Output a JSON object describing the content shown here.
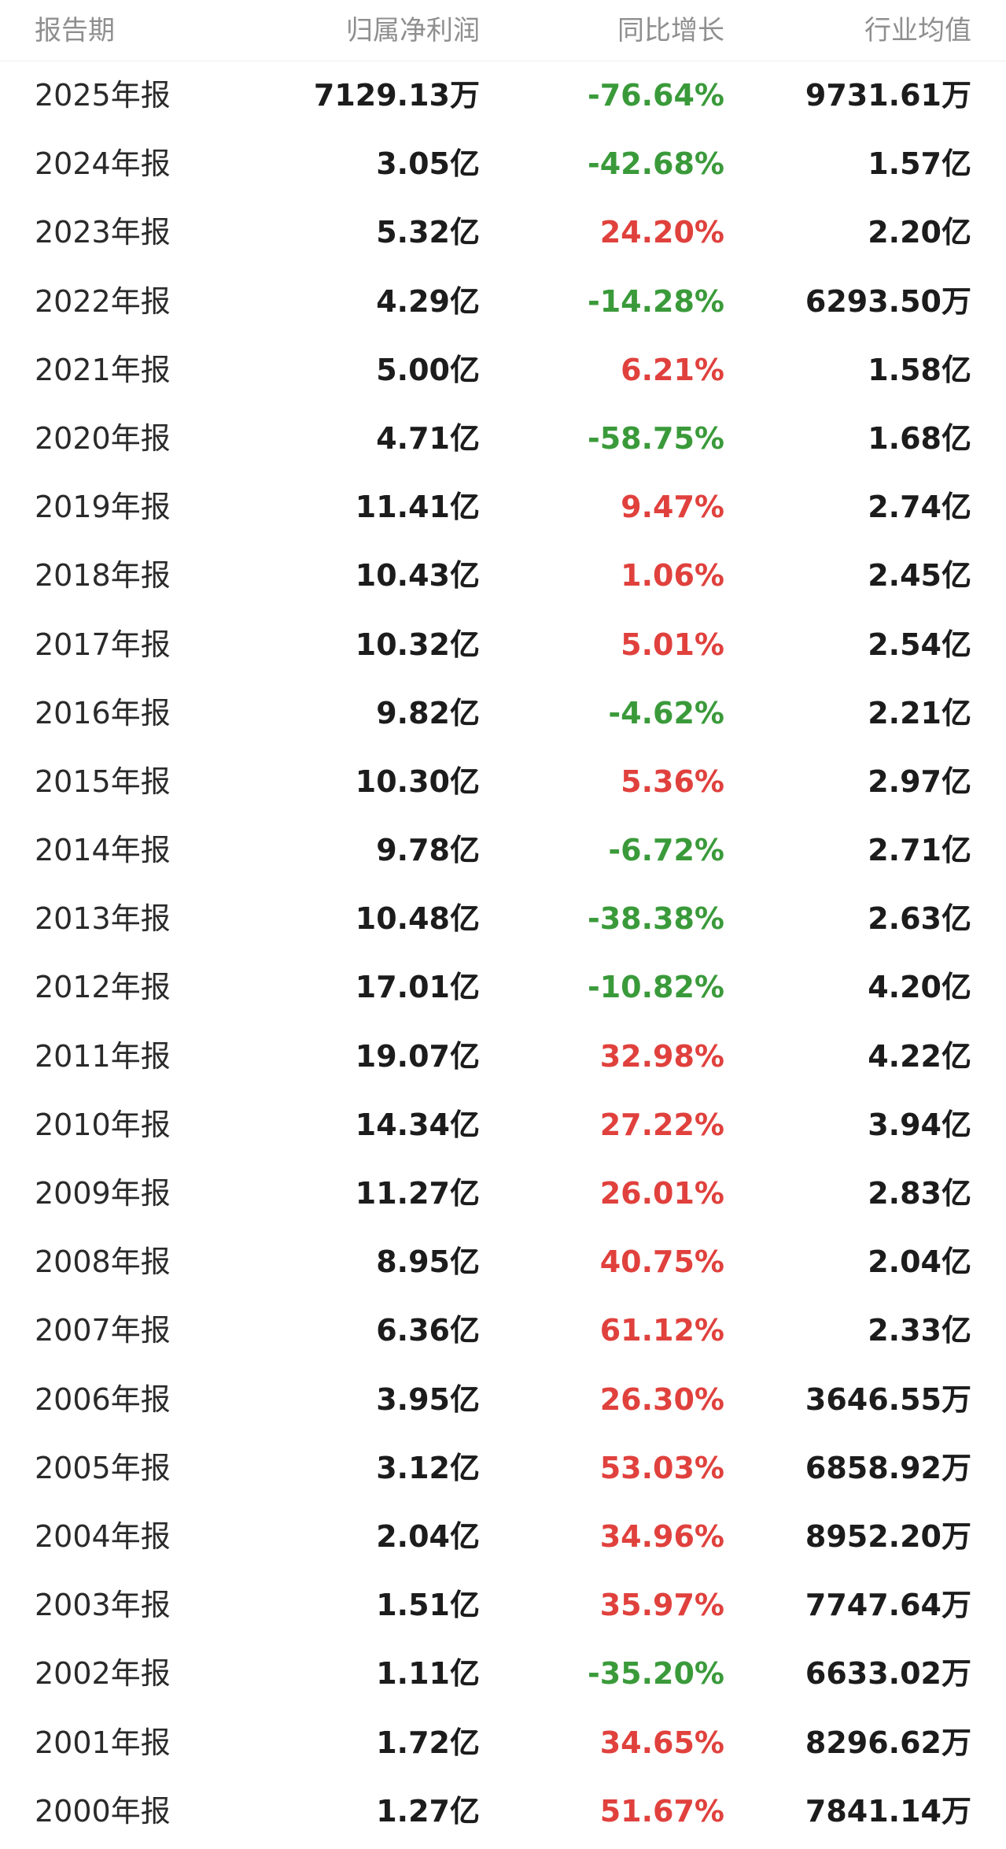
{
  "header": {
    "period": "报告期",
    "profit": "归属净利润",
    "growth": "同比增长",
    "industry_avg": "行业均值"
  },
  "colors": {
    "up": "#e0413d",
    "down": "#3a9a3a",
    "header_text": "#8f8f8f"
  },
  "rows": [
    {
      "period": "2025年报",
      "profit": "7129.13万",
      "growth": "-76.64%",
      "avg": "9731.61万",
      "dir": "down"
    },
    {
      "period": "2024年报",
      "profit": "3.05亿",
      "growth": "-42.68%",
      "avg": "1.57亿",
      "dir": "down"
    },
    {
      "period": "2023年报",
      "profit": "5.32亿",
      "growth": "24.20%",
      "avg": "2.20亿",
      "dir": "up"
    },
    {
      "period": "2022年报",
      "profit": "4.29亿",
      "growth": "-14.28%",
      "avg": "6293.50万",
      "dir": "down"
    },
    {
      "period": "2021年报",
      "profit": "5.00亿",
      "growth": "6.21%",
      "avg": "1.58亿",
      "dir": "up"
    },
    {
      "period": "2020年报",
      "profit": "4.71亿",
      "growth": "-58.75%",
      "avg": "1.68亿",
      "dir": "down"
    },
    {
      "period": "2019年报",
      "profit": "11.41亿",
      "growth": "9.47%",
      "avg": "2.74亿",
      "dir": "up"
    },
    {
      "period": "2018年报",
      "profit": "10.43亿",
      "growth": "1.06%",
      "avg": "2.45亿",
      "dir": "up"
    },
    {
      "period": "2017年报",
      "profit": "10.32亿",
      "growth": "5.01%",
      "avg": "2.54亿",
      "dir": "up"
    },
    {
      "period": "2016年报",
      "profit": "9.82亿",
      "growth": "-4.62%",
      "avg": "2.21亿",
      "dir": "down"
    },
    {
      "period": "2015年报",
      "profit": "10.30亿",
      "growth": "5.36%",
      "avg": "2.97亿",
      "dir": "up"
    },
    {
      "period": "2014年报",
      "profit": "9.78亿",
      "growth": "-6.72%",
      "avg": "2.71亿",
      "dir": "down"
    },
    {
      "period": "2013年报",
      "profit": "10.48亿",
      "growth": "-38.38%",
      "avg": "2.63亿",
      "dir": "down"
    },
    {
      "period": "2012年报",
      "profit": "17.01亿",
      "growth": "-10.82%",
      "avg": "4.20亿",
      "dir": "down"
    },
    {
      "period": "2011年报",
      "profit": "19.07亿",
      "growth": "32.98%",
      "avg": "4.22亿",
      "dir": "up"
    },
    {
      "period": "2010年报",
      "profit": "14.34亿",
      "growth": "27.22%",
      "avg": "3.94亿",
      "dir": "up"
    },
    {
      "period": "2009年报",
      "profit": "11.27亿",
      "growth": "26.01%",
      "avg": "2.83亿",
      "dir": "up"
    },
    {
      "period": "2008年报",
      "profit": "8.95亿",
      "growth": "40.75%",
      "avg": "2.04亿",
      "dir": "up"
    },
    {
      "period": "2007年报",
      "profit": "6.36亿",
      "growth": "61.12%",
      "avg": "2.33亿",
      "dir": "up"
    },
    {
      "period": "2006年报",
      "profit": "3.95亿",
      "growth": "26.30%",
      "avg": "3646.55万",
      "dir": "up"
    },
    {
      "period": "2005年报",
      "profit": "3.12亿",
      "growth": "53.03%",
      "avg": "6858.92万",
      "dir": "up"
    },
    {
      "period": "2004年报",
      "profit": "2.04亿",
      "growth": "34.96%",
      "avg": "8952.20万",
      "dir": "up"
    },
    {
      "period": "2003年报",
      "profit": "1.51亿",
      "growth": "35.97%",
      "avg": "7747.64万",
      "dir": "up"
    },
    {
      "period": "2002年报",
      "profit": "1.11亿",
      "growth": "-35.20%",
      "avg": "6633.02万",
      "dir": "down"
    },
    {
      "period": "2001年报",
      "profit": "1.72亿",
      "growth": "34.65%",
      "avg": "8296.62万",
      "dir": "up"
    },
    {
      "period": "2000年报",
      "profit": "1.27亿",
      "growth": "51.67%",
      "avg": "7841.14万",
      "dir": "up"
    }
  ]
}
